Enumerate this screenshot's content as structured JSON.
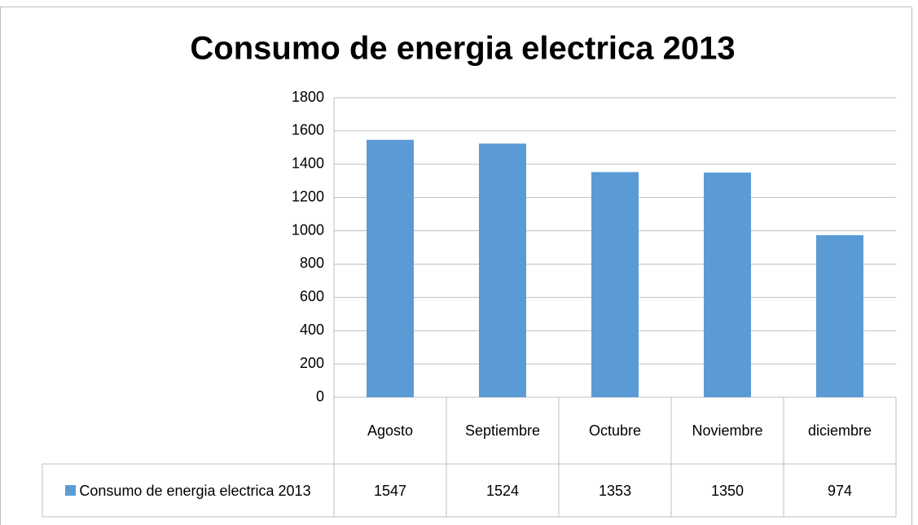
{
  "chart_data": {
    "type": "bar",
    "title": "Consumo de energia electrica 2013",
    "categories": [
      "Agosto",
      "Septiembre",
      "Octubre",
      "Noviembre",
      "diciembre"
    ],
    "series": [
      {
        "name": "Consumo de energia electrica 2013",
        "color": "#5b9bd5",
        "values": [
          1547,
          1524,
          1353,
          1350,
          974
        ]
      }
    ],
    "ylim": [
      0,
      1800
    ],
    "yticks": [
      0,
      200,
      400,
      600,
      800,
      1000,
      1200,
      1400,
      1600,
      1800
    ],
    "grid": true,
    "data_table": true
  }
}
